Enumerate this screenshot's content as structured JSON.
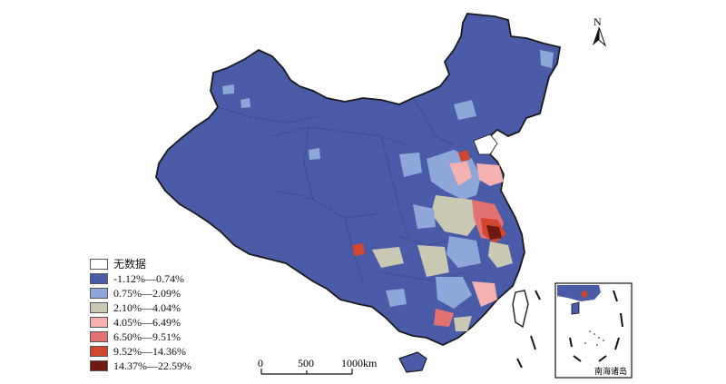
{
  "legend": {
    "items": [
      {
        "label": "无数据",
        "color": "#ffffff"
      },
      {
        "label": "-1.12%—0.74%",
        "color": "#4a5ba8"
      },
      {
        "label": "0.75%—2.09%",
        "color": "#8fa6d8"
      },
      {
        "label": "2.10%—4.04%",
        "color": "#c9c8b2"
      },
      {
        "label": "4.05%—6.49%",
        "color": "#f4b1b0"
      },
      {
        "label": "6.50%—9.51%",
        "color": "#e57272"
      },
      {
        "label": "9.52%—14.36%",
        "color": "#d0462f"
      },
      {
        "label": "14.37%—22.59%",
        "color": "#6e1a12"
      }
    ]
  },
  "scale_bar": {
    "ticks": [
      "0",
      "500",
      "1000km"
    ]
  },
  "north_arrow": {
    "label": "N",
    "icon": "north-arrow-icon"
  },
  "inset": {
    "label": "南海诸岛"
  }
}
